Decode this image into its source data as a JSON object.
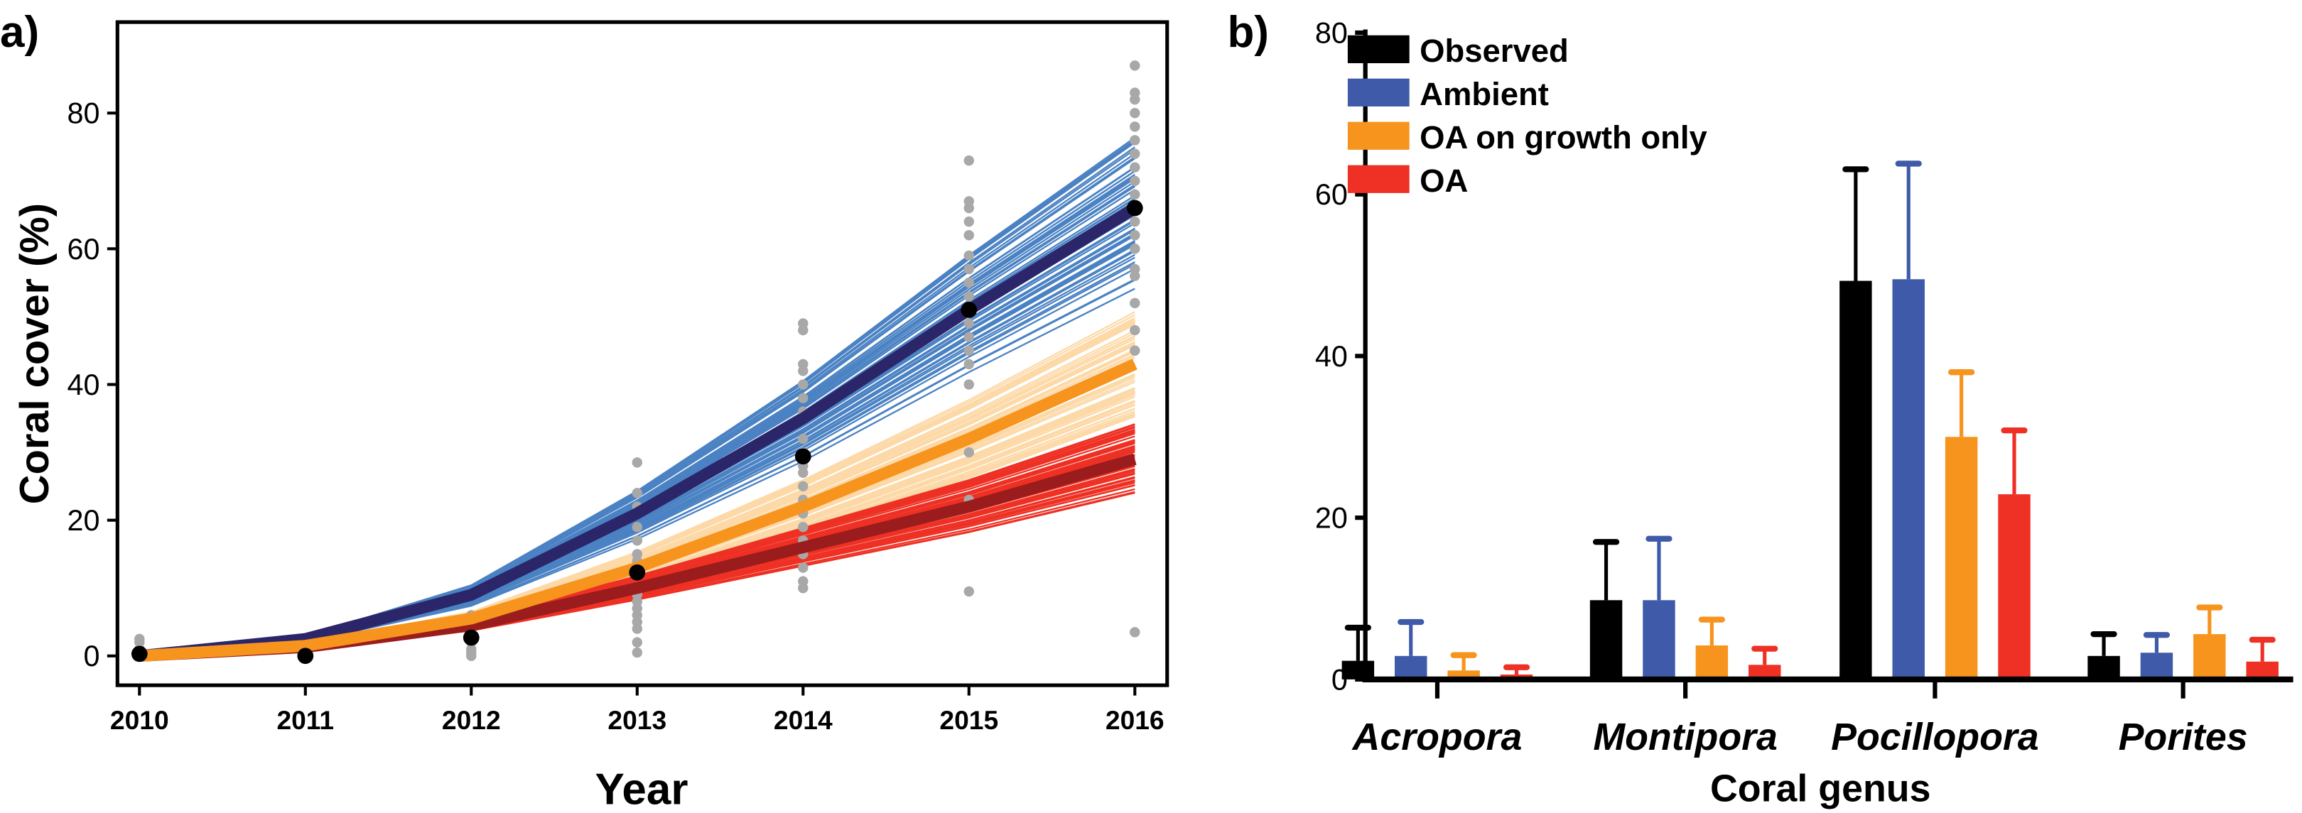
{
  "chart_data": [
    {
      "panel_label": "a)",
      "type": "line",
      "xlabel": "Year",
      "ylabel": "Coral cover (%)",
      "xlim": [
        2010,
        2016
      ],
      "ylim": [
        0,
        90
      ],
      "x_ticks": [
        "2010",
        "2011",
        "2012",
        "2013",
        "2014",
        "2015",
        "2016"
      ],
      "y_ticks": [
        "0",
        "20",
        "40",
        "60",
        "80"
      ],
      "grid": false,
      "x": [
        2010,
        2011,
        2012,
        2013,
        2014,
        2015,
        2016
      ],
      "series": [
        {
          "role": "ambient-mean",
          "color": "#2b2669",
          "ensemble_color": "#4a82c3",
          "values": [
            0,
            2.5,
            9,
            21,
            35,
            51,
            66
          ]
        },
        {
          "role": "oa-growth-mean",
          "color": "#f7941d",
          "ensemble_color": "#fdd9a8",
          "values": [
            0,
            1.5,
            5.5,
            13,
            22,
            32,
            43
          ]
        },
        {
          "role": "oa-mean",
          "color": "#9b1c1c",
          "ensemble_color": "#ee3124",
          "values": [
            0,
            1.3,
            4.5,
            10,
            16,
            22,
            29
          ]
        },
        {
          "role": "observed-mean",
          "color": "#000000",
          "values": [
            0.3,
            0,
            2.7,
            12.3,
            29.4,
            51,
            66
          ]
        }
      ],
      "observations": {
        "color": "#a8a8a8",
        "points": {
          "2010": [
            0,
            1,
            2,
            2.5
          ],
          "2011": [
            0
          ],
          "2012": [
            0,
            0.5,
            1,
            2,
            3,
            5,
            6
          ],
          "2013": [
            0.5,
            2,
            4,
            5,
            6,
            7,
            8,
            9,
            10,
            12,
            13,
            14,
            15,
            17,
            19,
            22,
            24,
            28.5
          ],
          "2014": [
            10,
            11,
            13,
            15,
            17,
            19,
            21,
            23,
            25,
            27,
            28,
            30,
            32,
            36,
            38,
            40,
            42,
            43,
            48,
            49
          ],
          "2015": [
            9.5,
            23,
            30,
            40,
            43,
            45,
            47,
            49,
            51,
            53,
            55,
            57,
            59,
            62,
            64,
            66,
            67,
            73
          ],
          "2016": [
            3.5,
            45,
            48,
            52,
            56,
            57,
            60,
            62,
            64,
            66,
            68,
            70,
            72,
            74,
            76,
            78,
            80,
            82,
            83,
            87
          ]
        }
      }
    },
    {
      "panel_label": "b)",
      "type": "bar",
      "xlabel": "Coral genus",
      "ylabel": "",
      "ylim": [
        0,
        80
      ],
      "y_ticks": [
        "0",
        "20",
        "40",
        "60",
        "80"
      ],
      "categories": [
        "Acropora",
        "Montipora",
        "Pocillopora",
        "Porites"
      ],
      "legend_position": "top-left",
      "series": [
        {
          "name": "Observed",
          "color": "#000000",
          "values": [
            2.3,
            9.8,
            49.3,
            2.9
          ],
          "error_upper": [
            6.4,
            17.0,
            63.1,
            5.6
          ]
        },
        {
          "name": "Ambient",
          "color": "#3f5aa8",
          "values": [
            2.9,
            9.8,
            49.5,
            3.3
          ],
          "error_upper": [
            7.1,
            17.4,
            63.8,
            5.5
          ]
        },
        {
          "name": "OA on growth only",
          "color": "#f7941d",
          "values": [
            1.1,
            4.2,
            30.0,
            5.6
          ],
          "error_upper": [
            3.0,
            7.4,
            38.0,
            8.9
          ]
        },
        {
          "name": "OA",
          "color": "#ee3124",
          "values": [
            0.6,
            1.8,
            22.9,
            2.2
          ],
          "error_upper": [
            1.5,
            3.8,
            30.8,
            4.9
          ]
        }
      ]
    }
  ]
}
